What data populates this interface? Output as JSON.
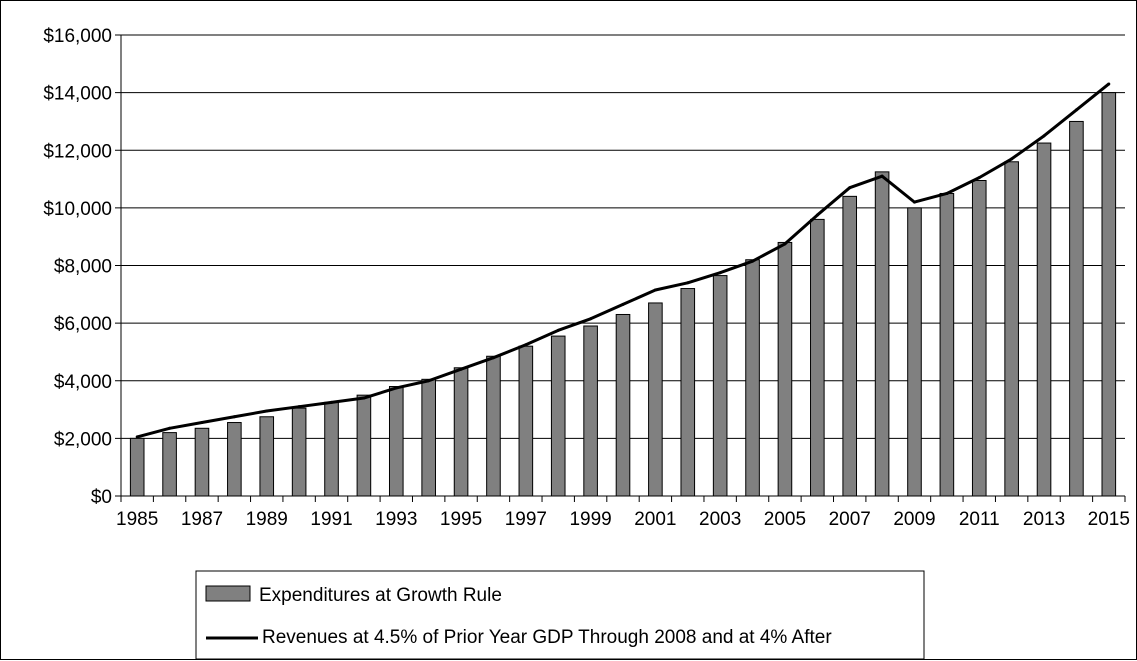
{
  "chart_data": {
    "type": "bar",
    "title": "",
    "xlabel": "",
    "ylabel": "",
    "categories": [
      "1985",
      "1986",
      "1987",
      "1988",
      "1989",
      "1990",
      "1991",
      "1992",
      "1993",
      "1994",
      "1995",
      "1996",
      "1997",
      "1998",
      "1999",
      "2000",
      "2001",
      "2002",
      "2003",
      "2004",
      "2005",
      "2006",
      "2007",
      "2008",
      "2009",
      "2010",
      "2011",
      "2012",
      "2013",
      "2014",
      "2015"
    ],
    "x_tick_labels": [
      "1985",
      "1987",
      "1989",
      "1991",
      "1993",
      "1995",
      "1997",
      "1999",
      "2001",
      "2003",
      "2005",
      "2007",
      "2009",
      "2011",
      "2013",
      "2015"
    ],
    "y_tick_labels": [
      "$0",
      "$2,000",
      "$4,000",
      "$6,000",
      "$8,000",
      "$10,000",
      "$12,000",
      "$14,000",
      "$16,000"
    ],
    "y_ticks": [
      0,
      2000,
      4000,
      6000,
      8000,
      10000,
      12000,
      14000,
      16000
    ],
    "ylim": [
      0,
      16000
    ],
    "grid": true,
    "legend_position": "bottom",
    "series": [
      {
        "name": "Expenditures at Growth Rule",
        "kind": "bar",
        "color": "#808080",
        "values": [
          2000,
          2200,
          2350,
          2550,
          2750,
          3050,
          3250,
          3500,
          3800,
          4050,
          4450,
          4850,
          5200,
          5550,
          5900,
          6300,
          6700,
          7200,
          7650,
          8200,
          8800,
          9600,
          10400,
          11250,
          10000,
          10500,
          10950,
          11600,
          12250,
          13000,
          14000
        ]
      },
      {
        "name": "Revenues at 4.5% of Prior Year GDP Through 2008 and at 4% After",
        "kind": "line",
        "color": "#000000",
        "values": [
          2050,
          2350,
          2550,
          2750,
          2950,
          3100,
          3250,
          3400,
          3750,
          4000,
          4400,
          4800,
          5250,
          5750,
          6150,
          6650,
          7150,
          7400,
          7750,
          8150,
          8750,
          9750,
          10700,
          11100,
          10200,
          10500,
          11050,
          11700,
          12500,
          13400,
          14300
        ]
      }
    ]
  }
}
